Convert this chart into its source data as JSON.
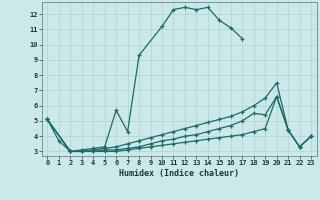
{
  "title": "",
  "xlabel": "Humidex (Indice chaleur)",
  "ylabel": "",
  "background_color": "#cce8e8",
  "grid_color": "#b0d8d8",
  "line_color": "#1a6b6b",
  "xlim": [
    -0.5,
    23.5
  ],
  "ylim": [
    2.7,
    12.8
  ],
  "xticks": [
    0,
    1,
    2,
    3,
    4,
    5,
    6,
    7,
    8,
    9,
    10,
    11,
    12,
    13,
    14,
    15,
    16,
    17,
    18,
    19,
    20,
    21,
    22,
    23
  ],
  "yticks": [
    3,
    4,
    5,
    6,
    7,
    8,
    9,
    10,
    11,
    12
  ],
  "series": [
    {
      "x": [
        0,
        1,
        2,
        3,
        4,
        5,
        6,
        7,
        8,
        10,
        11,
        12,
        13,
        14,
        15,
        16,
        17
      ],
      "y": [
        5.1,
        3.7,
        3.0,
        3.1,
        3.2,
        3.3,
        5.7,
        4.3,
        9.3,
        11.2,
        12.3,
        12.45,
        12.3,
        12.45,
        11.6,
        11.1,
        10.4
      ]
    },
    {
      "comment": "upper spread line - ends at 19:6.5, 20:7.5, 21:4.4, 22:3.3, 23:4.0",
      "x": [
        0,
        2,
        3,
        4,
        5,
        6,
        7,
        8,
        9,
        10,
        11,
        12,
        13,
        14,
        15,
        16,
        17,
        18,
        19,
        20,
        21,
        22,
        23
      ],
      "y": [
        5.1,
        3.0,
        3.0,
        3.1,
        3.2,
        3.3,
        3.5,
        3.7,
        3.9,
        4.1,
        4.3,
        4.5,
        4.7,
        4.9,
        5.1,
        5.3,
        5.6,
        6.0,
        6.5,
        7.5,
        4.4,
        3.3,
        4.0
      ]
    },
    {
      "x": [
        0,
        2,
        3,
        4,
        5,
        6,
        7,
        8,
        9,
        10,
        11,
        12,
        13,
        14,
        15,
        16,
        17,
        18,
        19,
        20,
        21,
        22,
        23
      ],
      "y": [
        5.1,
        3.0,
        3.0,
        3.0,
        3.1,
        3.1,
        3.2,
        3.3,
        3.5,
        3.7,
        3.8,
        4.0,
        4.1,
        4.3,
        4.5,
        4.7,
        5.0,
        5.5,
        5.4,
        6.6,
        4.4,
        3.3,
        4.0
      ]
    },
    {
      "x": [
        0,
        2,
        3,
        4,
        5,
        6,
        7,
        8,
        9,
        10,
        11,
        12,
        13,
        14,
        15,
        16,
        17,
        18,
        19,
        20,
        21,
        22,
        23
      ],
      "y": [
        5.1,
        3.0,
        3.0,
        3.0,
        3.0,
        3.0,
        3.1,
        3.2,
        3.3,
        3.4,
        3.5,
        3.6,
        3.7,
        3.8,
        3.9,
        4.0,
        4.1,
        4.3,
        4.5,
        6.6,
        4.4,
        3.3,
        4.0
      ]
    }
  ]
}
